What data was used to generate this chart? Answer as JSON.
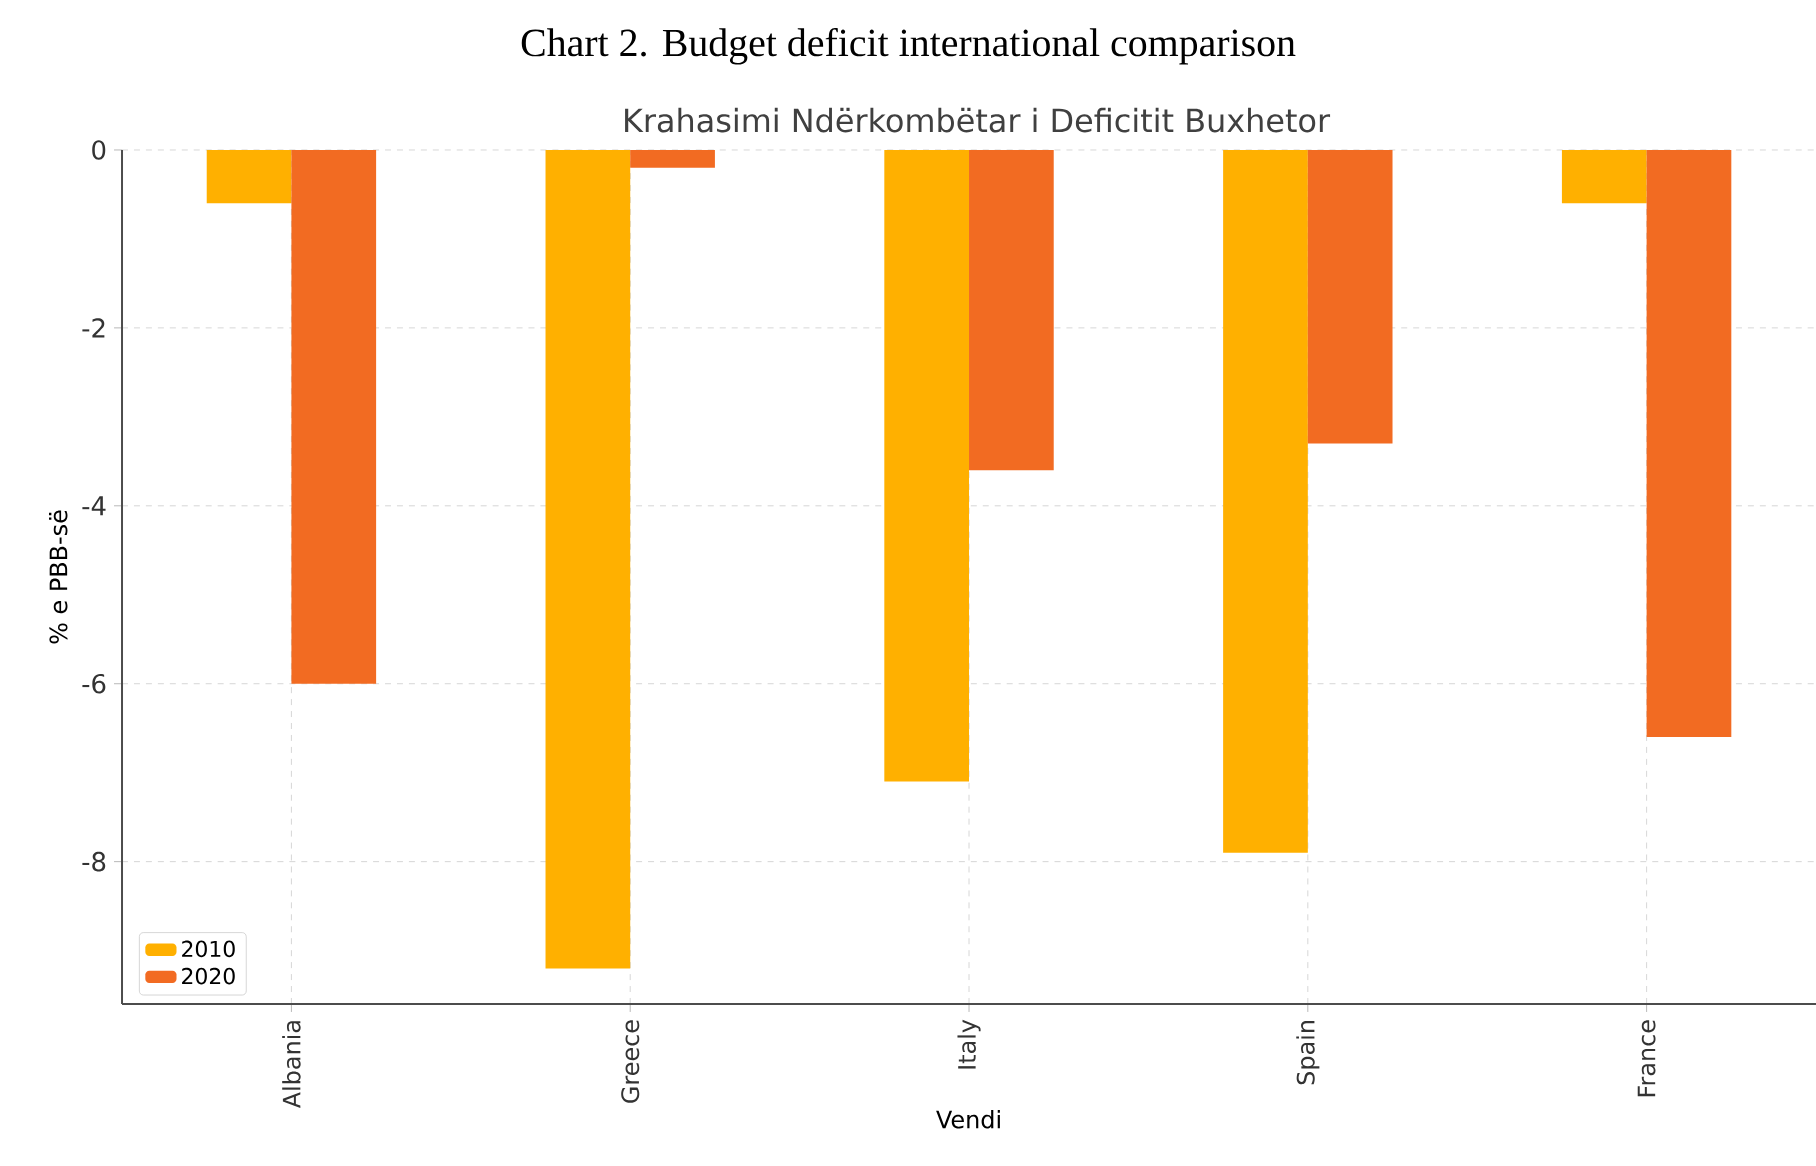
{
  "chart_data": {
    "type": "bar",
    "title": "Chart 2. Budget deficit international comparison",
    "subtitle": "Krahasimi Ndërkombëtar i Deficitit Buxhetor",
    "xlabel": "Vendi",
    "ylabel": "% e PBB-së",
    "categories": [
      "Albania",
      "Greece",
      "Italy",
      "Spain",
      "France"
    ],
    "series": [
      {
        "name": "2010",
        "color": "#ffb000",
        "values": [
          -0.6,
          -9.2,
          -7.1,
          -7.9,
          -0.6
        ]
      },
      {
        "name": "2020",
        "color": "#f26b22",
        "values": [
          -6.0,
          -0.2,
          -3.6,
          -3.3,
          -6.6
        ]
      }
    ],
    "ylim": [
      -9.6,
      0
    ],
    "yticks": [
      0,
      -2,
      -4,
      -6,
      -8
    ],
    "grid": true,
    "legend": "bottom left"
  }
}
